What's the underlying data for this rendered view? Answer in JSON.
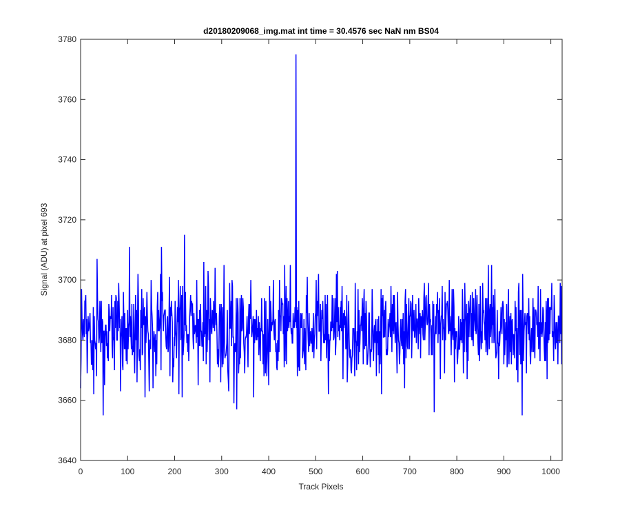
{
  "chart_data": {
    "type": "line",
    "title": "d20180209068_img.mat int time = 30.4576 sec  NaN nm BS04",
    "xlabel": "Track Pixels",
    "ylabel": "Signal (ADU) at pixel 693",
    "xlim": [
      0,
      1024
    ],
    "ylim": [
      3640,
      3780
    ],
    "xticks": [
      0,
      100,
      200,
      300,
      400,
      500,
      600,
      700,
      800,
      900,
      1000
    ],
    "yticks": [
      3640,
      3660,
      3680,
      3700,
      3720,
      3740,
      3760,
      3780
    ],
    "grid": false,
    "legend": "none",
    "line_color": "#0000ff",
    "series": [
      {
        "baseline": 3684,
        "spread": 8,
        "n_points": 1024,
        "points": [
          [
            0,
            3664
          ],
          [
            2,
            3697
          ],
          [
            5,
            3680
          ],
          [
            10,
            3693
          ],
          [
            14,
            3669
          ],
          [
            20,
            3689
          ],
          [
            28,
            3662
          ],
          [
            35,
            3707
          ],
          [
            41,
            3693
          ],
          [
            48,
            3655
          ],
          [
            60,
            3692
          ],
          [
            75,
            3695
          ],
          [
            85,
            3663
          ],
          [
            100,
            3690
          ],
          [
            104,
            3711
          ],
          [
            110,
            3675
          ],
          [
            120,
            3666
          ],
          [
            130,
            3697
          ],
          [
            137,
            3661
          ],
          [
            150,
            3700
          ],
          [
            160,
            3668
          ],
          [
            172,
            3711
          ],
          [
            180,
            3690
          ],
          [
            190,
            3668
          ],
          [
            200,
            3678
          ],
          [
            210,
            3690
          ],
          [
            216,
            3661
          ],
          [
            221,
            3715
          ],
          [
            228,
            3676
          ],
          [
            247,
            3700
          ],
          [
            250,
            3665
          ],
          [
            262,
            3706
          ],
          [
            275,
            3666
          ],
          [
            286,
            3704
          ],
          [
            298,
            3666
          ],
          [
            305,
            3705
          ],
          [
            315,
            3663
          ],
          [
            322,
            3700
          ],
          [
            326,
            3659
          ],
          [
            332,
            3657
          ],
          [
            345,
            3694
          ],
          [
            362,
            3700
          ],
          [
            368,
            3661
          ],
          [
            385,
            3694
          ],
          [
            400,
            3665
          ],
          [
            410,
            3700
          ],
          [
            418,
            3670
          ],
          [
            430,
            3692
          ],
          [
            453,
            3686
          ],
          [
            458,
            3775
          ],
          [
            462,
            3690
          ],
          [
            466,
            3670
          ],
          [
            480,
            3695
          ],
          [
            500,
            3689
          ],
          [
            522,
            3692
          ],
          [
            546,
            3703
          ],
          [
            560,
            3684
          ],
          [
            580,
            3683
          ],
          [
            600,
            3689
          ],
          [
            620,
            3697
          ],
          [
            640,
            3662
          ],
          [
            660,
            3698
          ],
          [
            670,
            3685
          ],
          [
            683,
            3678
          ],
          [
            700,
            3688
          ],
          [
            720,
            3686
          ],
          [
            740,
            3699
          ],
          [
            752,
            3656
          ],
          [
            770,
            3680
          ],
          [
            790,
            3697
          ],
          [
            805,
            3677
          ],
          [
            830,
            3681
          ],
          [
            840,
            3697
          ],
          [
            846,
            3675
          ],
          [
            855,
            3699
          ],
          [
            867,
            3705
          ],
          [
            880,
            3683
          ],
          [
            899,
            3691
          ],
          [
            910,
            3697
          ],
          [
            925,
            3683
          ],
          [
            939,
            3655
          ],
          [
            945,
            3689
          ],
          [
            960,
            3676
          ],
          [
            973,
            3698
          ],
          [
            992,
            3667
          ],
          [
            1002,
            3699
          ],
          [
            1010,
            3677
          ],
          [
            1018,
            3683
          ],
          [
            1023,
            3672
          ]
        ]
      }
    ]
  }
}
